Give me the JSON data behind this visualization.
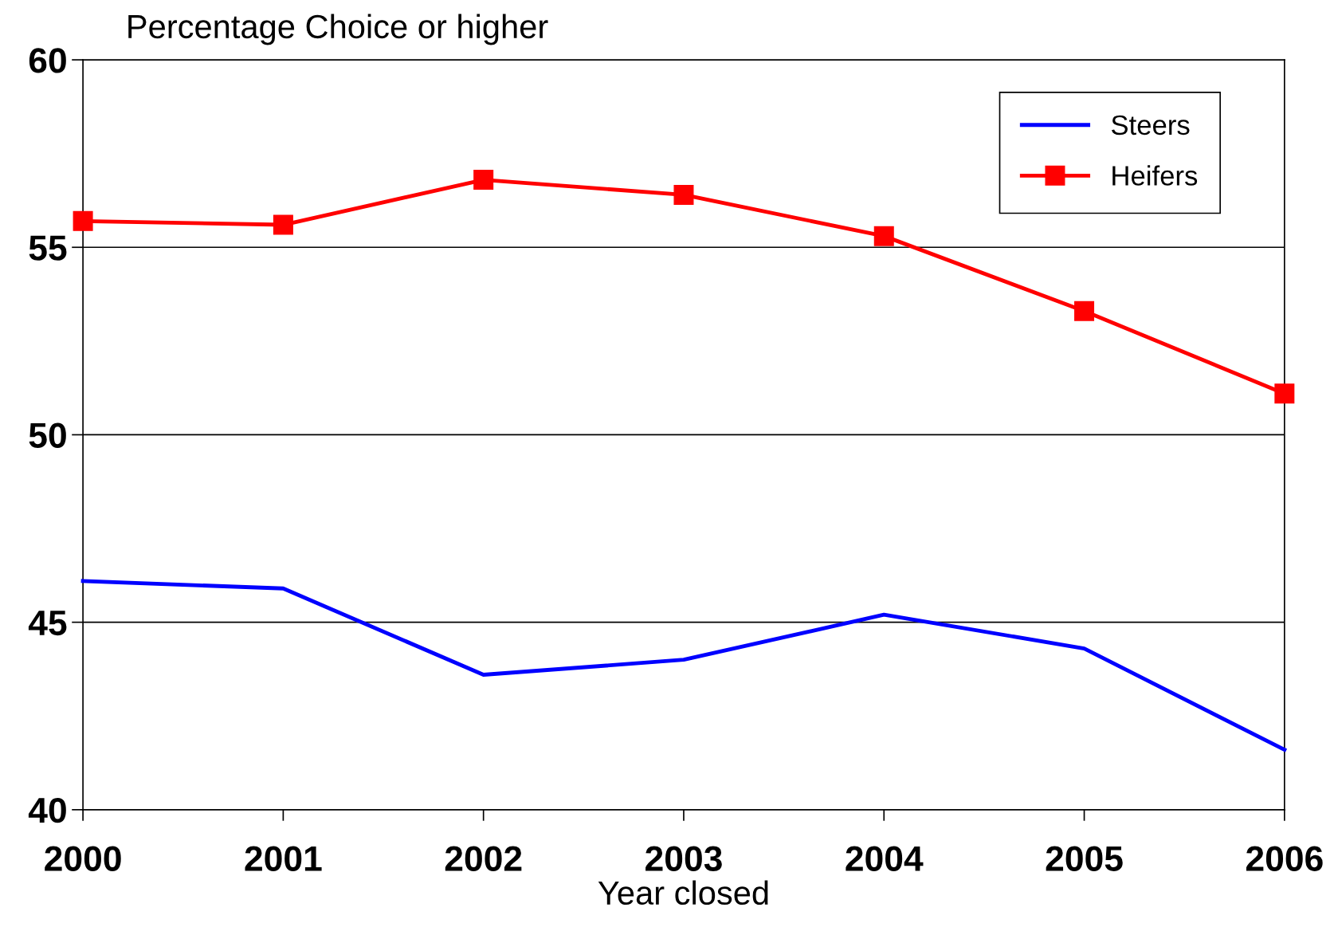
{
  "chart_data": {
    "type": "line",
    "title": "Percentage Choice or higher",
    "xlabel": "Year closed",
    "x": [
      2000,
      2001,
      2002,
      2003,
      2004,
      2005,
      2006
    ],
    "series": [
      {
        "name": "Steers",
        "color": "#0000ff",
        "marker": "none",
        "values": [
          46.1,
          45.9,
          43.6,
          44.0,
          45.2,
          44.3,
          41.6
        ]
      },
      {
        "name": "Heifers",
        "color": "#ff0000",
        "marker": "square",
        "values": [
          55.7,
          55.6,
          56.8,
          56.4,
          55.3,
          53.3,
          51.1
        ]
      }
    ],
    "xlim": [
      2000,
      2006
    ],
    "xticks": [
      2000,
      2001,
      2002,
      2003,
      2004,
      2005,
      2006
    ],
    "ylim": [
      40,
      60
    ],
    "yticks": [
      40,
      45,
      50,
      55,
      60
    ],
    "grid": "y",
    "legend": "top right",
    "line_style": "solid"
  }
}
